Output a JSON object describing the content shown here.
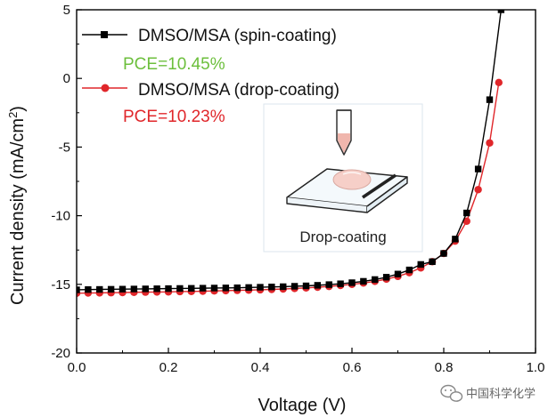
{
  "chart_data": {
    "type": "line",
    "title": "",
    "xlabel": "Voltage (V)",
    "ylabel_main": "Current density (mA/cm",
    "ylabel_sup": "2",
    "ylabel_close": ")",
    "xlim": [
      0.0,
      1.0
    ],
    "ylim": [
      -20,
      5
    ],
    "xticks": [
      0.0,
      0.2,
      0.4,
      0.6,
      0.8,
      1.0
    ],
    "xtick_labels": [
      "0.0",
      "0.2",
      "0.4",
      "0.6",
      "0.8",
      "1.0"
    ],
    "yticks": [
      -20,
      -15,
      -10,
      -5,
      0,
      5
    ],
    "ytick_labels": [
      "-20",
      "-15",
      "-10",
      "-5",
      "0",
      "5"
    ],
    "series": [
      {
        "name": "DMSO/MSA (spin-coating)",
        "pce": "PCE=10.45%",
        "color": "#000000",
        "pce_color": "#6cbf3c",
        "marker": "square",
        "x": [
          0.0,
          0.025,
          0.05,
          0.075,
          0.1,
          0.125,
          0.15,
          0.175,
          0.2,
          0.225,
          0.25,
          0.275,
          0.3,
          0.325,
          0.35,
          0.375,
          0.4,
          0.425,
          0.45,
          0.475,
          0.5,
          0.525,
          0.55,
          0.575,
          0.6,
          0.625,
          0.65,
          0.675,
          0.7,
          0.725,
          0.75,
          0.775,
          0.8,
          0.825,
          0.85,
          0.875,
          0.9,
          0.925
        ],
        "y": [
          -15.4,
          -15.38,
          -15.37,
          -15.36,
          -15.35,
          -15.34,
          -15.33,
          -15.32,
          -15.31,
          -15.3,
          -15.29,
          -15.28,
          -15.27,
          -15.26,
          -15.25,
          -15.23,
          -15.21,
          -15.19,
          -15.17,
          -15.14,
          -15.11,
          -15.07,
          -15.02,
          -14.96,
          -14.88,
          -14.78,
          -14.65,
          -14.48,
          -14.25,
          -13.95,
          -13.55,
          -13.35,
          -12.75,
          -11.7,
          -9.8,
          -6.6,
          -1.55,
          5.0
        ]
      },
      {
        "name": "DMSO/MSA (drop-coating)",
        "pce": "PCE=10.23%",
        "color": "#e0262a",
        "pce_color": "#e0262a",
        "marker": "circle",
        "x": [
          0.0,
          0.025,
          0.05,
          0.075,
          0.1,
          0.125,
          0.15,
          0.175,
          0.2,
          0.225,
          0.25,
          0.275,
          0.3,
          0.325,
          0.35,
          0.375,
          0.4,
          0.425,
          0.45,
          0.475,
          0.5,
          0.525,
          0.55,
          0.575,
          0.6,
          0.625,
          0.65,
          0.675,
          0.7,
          0.725,
          0.75,
          0.775,
          0.8,
          0.825,
          0.85,
          0.875,
          0.9,
          0.92
        ],
        "y": [
          -15.65,
          -15.63,
          -15.62,
          -15.61,
          -15.6,
          -15.58,
          -15.57,
          -15.56,
          -15.55,
          -15.53,
          -15.52,
          -15.5,
          -15.48,
          -15.46,
          -15.44,
          -15.42,
          -15.4,
          -15.37,
          -15.34,
          -15.3,
          -15.26,
          -15.21,
          -15.15,
          -15.08,
          -15.0,
          -14.9,
          -14.78,
          -14.62,
          -14.42,
          -14.15,
          -13.8,
          -13.35,
          -12.75,
          -11.85,
          -10.4,
          -8.1,
          -4.7,
          -0.3
        ]
      }
    ],
    "inset_label": "Drop-coating"
  },
  "watermark": {
    "text": "中国科学化学"
  }
}
